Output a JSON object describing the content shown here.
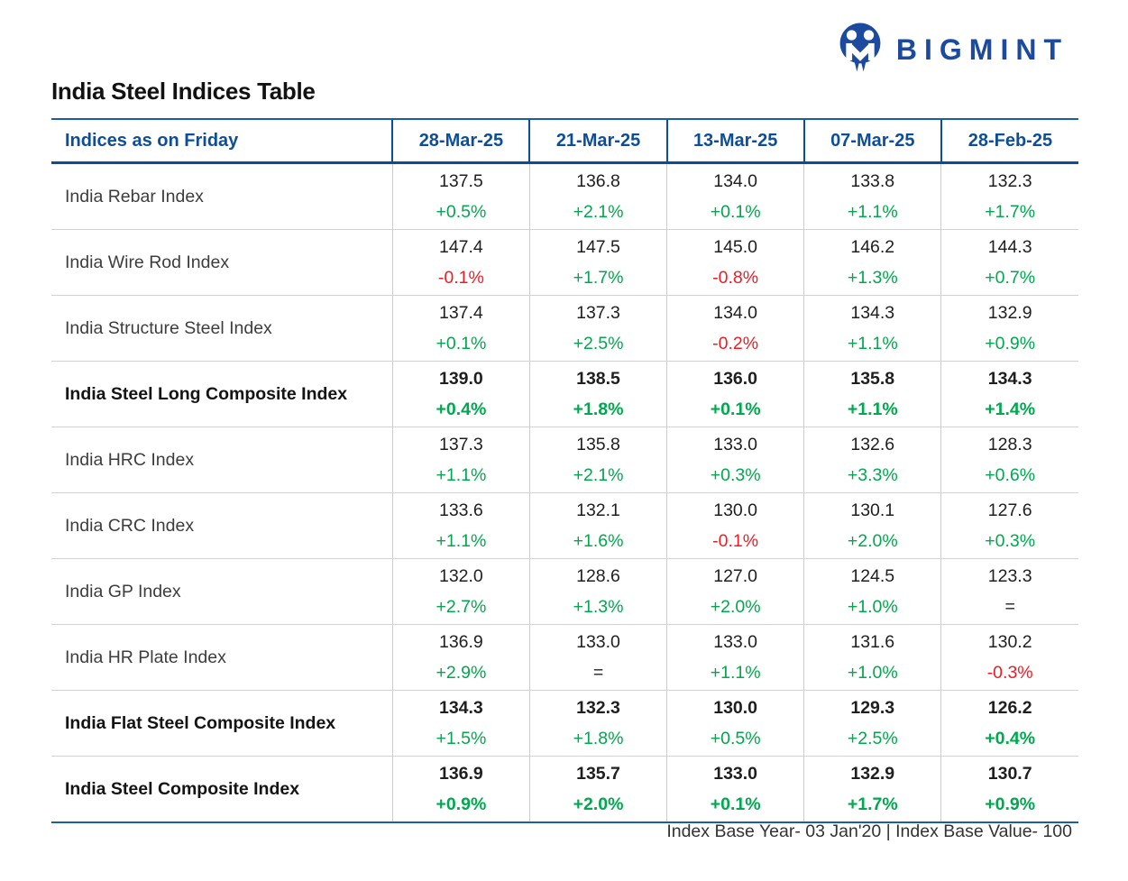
{
  "logo": {
    "text": "BIGMINT",
    "mark": "bigmint-monogram-circle",
    "brand_color": "#1b4a9e"
  },
  "title": "India Steel Indices Table",
  "table": {
    "header": {
      "label": "Indices as on Friday",
      "dates": [
        "28-Mar-25",
        "21-Mar-25",
        "13-Mar-25",
        "07-Mar-25",
        "28-Feb-25"
      ]
    },
    "rows": [
      {
        "label": "India Rebar Index",
        "bold_label": false,
        "bold_values": false,
        "bold_changes": [
          false,
          false,
          false,
          false,
          false
        ],
        "cells": [
          {
            "value": "137.5",
            "change": "+0.5%"
          },
          {
            "value": "136.8",
            "change": "+2.1%"
          },
          {
            "value": "134.0",
            "change": "+0.1%"
          },
          {
            "value": "133.8",
            "change": "+1.1%"
          },
          {
            "value": "132.3",
            "change": "+1.7%"
          }
        ]
      },
      {
        "label": "India Wire Rod Index",
        "bold_label": false,
        "bold_values": false,
        "bold_changes": [
          false,
          false,
          false,
          false,
          false
        ],
        "cells": [
          {
            "value": "147.4",
            "change": "-0.1%"
          },
          {
            "value": "147.5",
            "change": "+1.7%"
          },
          {
            "value": "145.0",
            "change": "-0.8%"
          },
          {
            "value": "146.2",
            "change": "+1.3%"
          },
          {
            "value": "144.3",
            "change": "+0.7%"
          }
        ]
      },
      {
        "label": "India Structure Steel Index",
        "bold_label": false,
        "bold_values": false,
        "bold_changes": [
          false,
          false,
          false,
          false,
          false
        ],
        "cells": [
          {
            "value": "137.4",
            "change": "+0.1%"
          },
          {
            "value": "137.3",
            "change": "+2.5%"
          },
          {
            "value": "134.0",
            "change": "-0.2%"
          },
          {
            "value": "134.3",
            "change": "+1.1%"
          },
          {
            "value": "132.9",
            "change": "+0.9%"
          }
        ]
      },
      {
        "label": "India Steel Long Composite Index",
        "bold_label": true,
        "bold_values": true,
        "bold_changes": [
          true,
          true,
          true,
          true,
          true
        ],
        "cells": [
          {
            "value": "139.0",
            "change": "+0.4%"
          },
          {
            "value": "138.5",
            "change": "+1.8%"
          },
          {
            "value": "136.0",
            "change": "+0.1%"
          },
          {
            "value": "135.8",
            "change": "+1.1%"
          },
          {
            "value": "134.3",
            "change": "+1.4%"
          }
        ]
      },
      {
        "label": "India HRC Index",
        "bold_label": false,
        "bold_values": false,
        "bold_changes": [
          false,
          false,
          false,
          false,
          false
        ],
        "cells": [
          {
            "value": "137.3",
            "change": "+1.1%"
          },
          {
            "value": "135.8",
            "change": "+2.1%"
          },
          {
            "value": "133.0",
            "change": "+0.3%"
          },
          {
            "value": "132.6",
            "change": "+3.3%"
          },
          {
            "value": "128.3",
            "change": "+0.6%"
          }
        ]
      },
      {
        "label": "India CRC Index",
        "bold_label": false,
        "bold_values": false,
        "bold_changes": [
          false,
          false,
          false,
          false,
          false
        ],
        "cells": [
          {
            "value": "133.6",
            "change": "+1.1%"
          },
          {
            "value": "132.1",
            "change": "+1.6%"
          },
          {
            "value": "130.0",
            "change": "-0.1%"
          },
          {
            "value": "130.1",
            "change": "+2.0%"
          },
          {
            "value": "127.6",
            "change": "+0.3%"
          }
        ]
      },
      {
        "label": "India GP Index",
        "bold_label": false,
        "bold_values": false,
        "bold_changes": [
          false,
          false,
          false,
          false,
          false
        ],
        "cells": [
          {
            "value": "132.0",
            "change": "+2.7%"
          },
          {
            "value": "128.6",
            "change": "+1.3%"
          },
          {
            "value": "127.0",
            "change": "+2.0%"
          },
          {
            "value": "124.5",
            "change": "+1.0%"
          },
          {
            "value": "123.3",
            "change": "="
          }
        ]
      },
      {
        "label": "India HR Plate Index",
        "bold_label": false,
        "bold_values": false,
        "bold_changes": [
          false,
          false,
          false,
          false,
          false
        ],
        "cells": [
          {
            "value": "136.9",
            "change": "+2.9%"
          },
          {
            "value": "133.0",
            "change": "="
          },
          {
            "value": "133.0",
            "change": "+1.1%"
          },
          {
            "value": "131.6",
            "change": "+1.0%"
          },
          {
            "value": "130.2",
            "change": "-0.3%"
          }
        ]
      },
      {
        "label": "India Flat Steel Composite Index",
        "bold_label": true,
        "bold_values": true,
        "bold_changes": [
          false,
          false,
          false,
          false,
          true
        ],
        "cells": [
          {
            "value": "134.3",
            "change": "+1.5%"
          },
          {
            "value": "132.3",
            "change": "+1.8%"
          },
          {
            "value": "130.0",
            "change": "+0.5%"
          },
          {
            "value": "129.3",
            "change": "+2.5%"
          },
          {
            "value": "126.2",
            "change": "+0.4%"
          }
        ]
      },
      {
        "label": "India Steel Composite Index",
        "bold_label": true,
        "bold_values": true,
        "bold_changes": [
          true,
          true,
          true,
          true,
          true
        ],
        "cells": [
          {
            "value": "136.9",
            "change": "+0.9%"
          },
          {
            "value": "135.7",
            "change": "+2.0%"
          },
          {
            "value": "133.0",
            "change": "+0.1%"
          },
          {
            "value": "132.9",
            "change": "+1.7%"
          },
          {
            "value": "130.7",
            "change": "+0.9%"
          }
        ]
      }
    ]
  },
  "footnote": "Index Base Year- 03 Jan'20 | Index Base Value- 100",
  "colors": {
    "accent_blue": "#0d4e9b",
    "positive_green": "#00a84f",
    "negative_red": "#ee1c25",
    "neutral_black": "#222222"
  }
}
